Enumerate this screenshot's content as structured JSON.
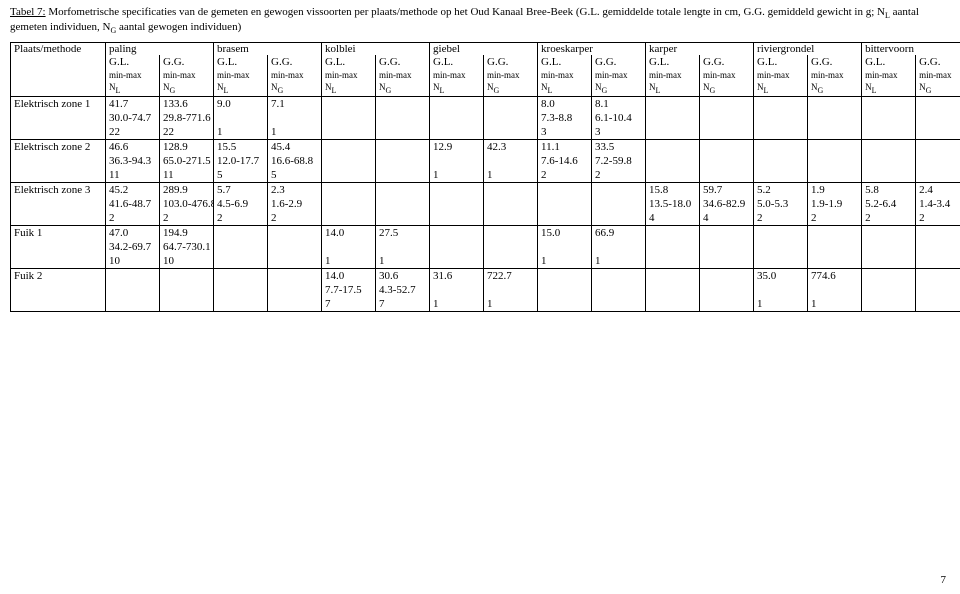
{
  "caption": {
    "label": "Tabel 7:",
    "text_part1": " Morfometrische specificaties van de gemeten en gewogen vissoorten per plaats/methode op het Oud Kanaal Bree-Beek (G.L. gemiddelde totale lengte in cm, G.G. gemiddeld gewicht in g; N",
    "text_part2": " aantal gemeten individuen, N",
    "text_part3": " aantal gewogen individuen)"
  },
  "header": {
    "col1": "Plaats/methode",
    "species": [
      "paling",
      "brasem",
      "kolblei",
      "giebel",
      "kroeskarper",
      "karper",
      "riviergrondel",
      "bittervoorn"
    ],
    "sub_gl": "G.L.",
    "sub_gg": "G.G.",
    "sub_minmax": "min-max",
    "sub_nl": "N",
    "sub_nl_sub": "L",
    "sub_ng": "N",
    "sub_ng_sub": "G"
  },
  "rows": [
    {
      "label": "Elektrisch zone 1",
      "lines": [
        [
          "41.7",
          "133.6",
          "9.0",
          "7.1",
          "",
          "",
          "",
          "",
          "8.0",
          "8.1",
          "",
          "",
          "",
          "",
          "",
          ""
        ],
        [
          "30.0-74.7",
          "29.8-771.6",
          "",
          "",
          "",
          "",
          "",
          "",
          "7.3-8.8",
          "6.1-10.4",
          "",
          "",
          "",
          "",
          "",
          ""
        ],
        [
          "22",
          "22",
          "1",
          "1",
          "",
          "",
          "",
          "",
          "3",
          "3",
          "",
          "",
          "",
          "",
          "",
          ""
        ]
      ]
    },
    {
      "label": "Elektrisch zone 2",
      "lines": [
        [
          "46.6",
          "128.9",
          "15.5",
          "45.4",
          "",
          "",
          "12.9",
          "42.3",
          "11.1",
          "33.5",
          "",
          "",
          "",
          "",
          "",
          ""
        ],
        [
          "36.3-94.3",
          "65.0-271.5",
          "12.0-17.7",
          "16.6-68.8",
          "",
          "",
          "",
          "",
          "7.6-14.6",
          "7.2-59.8",
          "",
          "",
          "",
          "",
          "",
          ""
        ],
        [
          "11",
          "11",
          "5",
          "5",
          "",
          "",
          "1",
          "1",
          "2",
          "2",
          "",
          "",
          "",
          "",
          "",
          ""
        ]
      ]
    },
    {
      "label": "Elektrisch zone 3",
      "lines": [
        [
          "45.2",
          "289.9",
          "5.7",
          "2.3",
          "",
          "",
          "",
          "",
          "",
          "",
          "15.8",
          "59.7",
          "5.2",
          "1.9",
          "5.8",
          "2.4"
        ],
        [
          "41.6-48.7",
          "103.0-476.8",
          "4.5-6.9",
          "1.6-2.9",
          "",
          "",
          "",
          "",
          "",
          "",
          "13.5-18.0",
          "34.6-82.9",
          "5.0-5.3",
          "1.9-1.9",
          "5.2-6.4",
          "1.4-3.4"
        ],
        [
          "2",
          "2",
          "2",
          "2",
          "",
          "",
          "",
          "",
          "",
          "",
          "4",
          "4",
          "2",
          "2",
          "2",
          "2"
        ]
      ]
    },
    {
      "label": "Fuik 1",
      "lines": [
        [
          "47.0",
          "194.9",
          "",
          "",
          "14.0",
          "27.5",
          "",
          "",
          "15.0",
          "66.9",
          "",
          "",
          "",
          "",
          "",
          ""
        ],
        [
          "34.2-69.7",
          "64.7-730.1",
          "",
          "",
          "",
          "",
          "",
          "",
          "",
          "",
          "",
          "",
          "",
          "",
          "",
          ""
        ],
        [
          "10",
          "10",
          "",
          "",
          "1",
          "1",
          "",
          "",
          "1",
          "1",
          "",
          "",
          "",
          "",
          "",
          ""
        ]
      ]
    },
    {
      "label": "Fuik 2",
      "lines": [
        [
          "",
          "",
          "",
          "",
          "14.0",
          "30.6",
          "31.6",
          "722.7",
          "",
          "",
          "",
          "",
          "35.0",
          "774.6",
          "",
          ""
        ],
        [
          "",
          "",
          "",
          "",
          "7.7-17.5",
          "4.3-52.7",
          "",
          "",
          "",
          "",
          "",
          "",
          "",
          "",
          "",
          ""
        ],
        [
          "",
          "",
          "",
          "",
          "7",
          "7",
          "1",
          "1",
          "",
          "",
          "",
          "",
          "1",
          "1",
          "",
          ""
        ]
      ]
    }
  ],
  "page_number": "7",
  "style": {
    "background": "#ffffff",
    "border": "#000000",
    "font_size_body": 11,
    "font_size_sub": 9,
    "caption_underline": true
  }
}
